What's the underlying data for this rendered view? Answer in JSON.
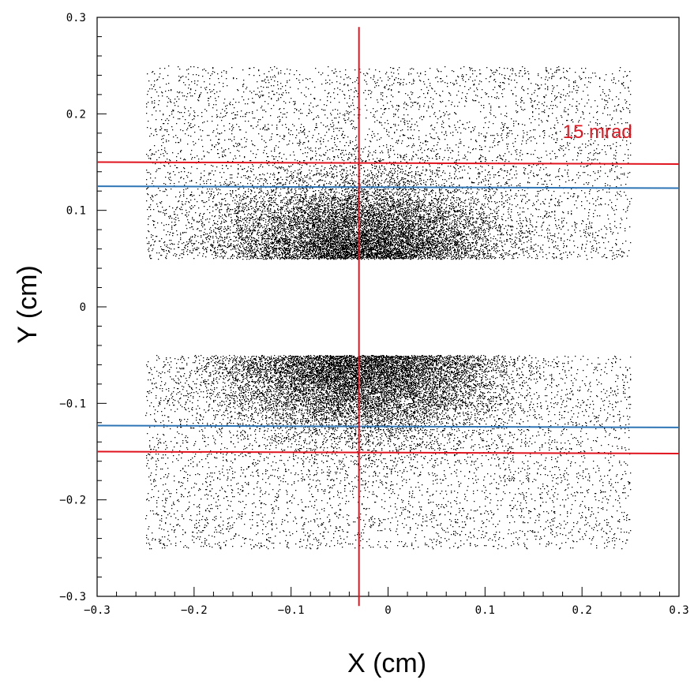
{
  "chart_data": {
    "type": "scatter",
    "title": "",
    "xlabel": "X (cm)",
    "ylabel": "Y (cm)",
    "xlim": [
      -0.3,
      0.3
    ],
    "ylim": [
      -0.3,
      0.3
    ],
    "grid": false,
    "x_ticks": [
      -0.3,
      -0.2,
      -0.1,
      0,
      0.1,
      0.2,
      0.3
    ],
    "x_tick_labels": [
      "−0.3",
      "−0.2",
      "−0.1",
      "0",
      "0.1",
      "0.2",
      "0.3"
    ],
    "y_ticks": [
      -0.3,
      -0.2,
      -0.1,
      0,
      0.1,
      0.2,
      0.3
    ],
    "y_tick_labels": [
      "−0.3",
      "−0.2",
      "−0.1",
      "0",
      "0.1",
      "0.2",
      "0.3"
    ],
    "point_color": "#000000",
    "scatter_regions": [
      {
        "x_range": [
          -0.25,
          0.25
        ],
        "y_range": [
          0.05,
          0.25
        ],
        "dense_near_x": -0.03,
        "dense_near_y": 0.05
      },
      {
        "x_range": [
          -0.25,
          0.25
        ],
        "y_range": [
          -0.25,
          -0.05
        ],
        "dense_near_x": -0.03,
        "dense_near_y": -0.05
      }
    ],
    "overlays": {
      "red_color": "#e0141e",
      "blue_color": "#2e75b6",
      "vertical_red": {
        "x": -0.03,
        "y_range": [
          -0.31,
          0.29
        ]
      },
      "horizontal_red": [
        {
          "y_start": 0.15,
          "y_end": 0.148
        },
        {
          "y_start": -0.15,
          "y_end": -0.152
        }
      ],
      "horizontal_blue": [
        {
          "y_start": 0.125,
          "y_end": 0.123
        },
        {
          "y_start": -0.123,
          "y_end": -0.125
        }
      ],
      "annotation": {
        "text": "15 mrad",
        "x": 0.18,
        "y": 0.175
      }
    }
  }
}
